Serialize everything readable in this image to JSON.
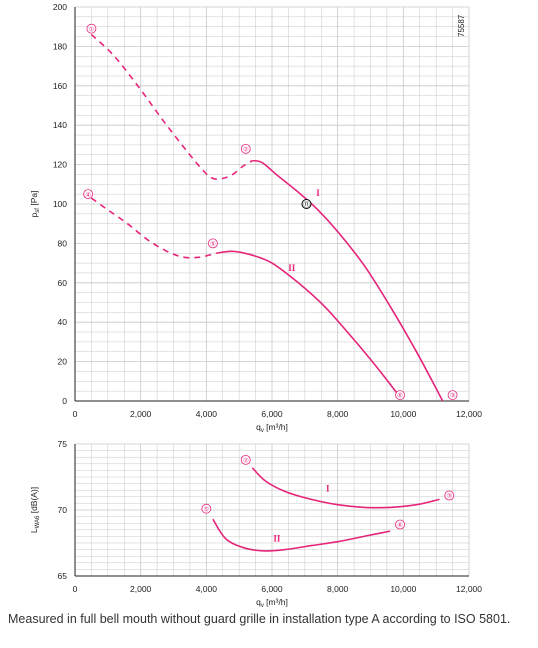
{
  "chart_data": [
    {
      "type": "line",
      "figure_id": "75587",
      "xlabel": "q_v [m³/h]",
      "ylabel": "p_sf [Pa]",
      "xlim": [
        0,
        12000
      ],
      "ylim": [
        0,
        200
      ],
      "x_ticks": [
        "0",
        "2,000",
        "4,000",
        "6,000",
        "8,000",
        "10,000",
        "12,000"
      ],
      "y_ticks": [
        "0",
        "20",
        "40",
        "60",
        "80",
        "100",
        "120",
        "140",
        "160",
        "180",
        "200"
      ],
      "grid": true,
      "series": [
        {
          "name": "I",
          "dashed": {
            "x": [
              500,
              1200,
              2000,
              2700,
              3400,
              3900,
              4200,
              4500,
              4800,
              5100,
              5400
            ],
            "y": [
              186,
              175,
              158,
              142,
              127,
              117,
              113,
              113,
              115,
              119,
              122
            ]
          },
          "solid": {
            "x": [
              5400,
              5700,
              6200,
              6800,
              7400,
              8000,
              8800,
              9600,
              10400,
              11200
            ],
            "y": [
              122,
              121,
              114,
              106,
              97,
              86,
              69,
              48,
              25,
              0
            ]
          }
        },
        {
          "name": "II",
          "dashed": {
            "x": [
              500,
              1000,
              1600,
              2200,
              2800,
              3300,
              3800,
              4300
            ],
            "y": [
              103,
              97,
              90,
              82,
              76,
              73,
              73,
              75
            ]
          },
          "solid": {
            "x": [
              4300,
              4800,
              5400,
              6000,
              6800,
              7600,
              8400,
              9200,
              9900
            ],
            "y": [
              75,
              76,
              74,
              70,
              60,
              48,
              33,
              17,
              2
            ]
          }
        }
      ],
      "markers": [
        {
          "label": "①",
          "x": 500,
          "y": 189
        },
        {
          "label": "②",
          "x": 5200,
          "y": 128
        },
        {
          "label": "③",
          "x": 11500,
          "y": 3
        },
        {
          "label": "④",
          "x": 400,
          "y": 105
        },
        {
          "label": "⑤",
          "x": 4200,
          "y": 80
        },
        {
          "label": "⑥",
          "x": 9900,
          "y": 3
        }
      ],
      "operating_point": {
        "label": "⑪",
        "x": 7050,
        "y": 100
      },
      "curve_labels": [
        {
          "text": "I",
          "x": 7400,
          "y": 104
        },
        {
          "text": "II",
          "x": 6600,
          "y": 66
        }
      ]
    },
    {
      "type": "line",
      "xlabel": "q_v [m³/h]",
      "ylabel": "L_WA6 [dB(A)]",
      "xlim": [
        0,
        12000
      ],
      "ylim": [
        65,
        75
      ],
      "x_ticks": [
        "0",
        "2,000",
        "4,000",
        "6,000",
        "8,000",
        "10,000",
        "12,000"
      ],
      "y_ticks": [
        "65",
        "70",
        "75"
      ],
      "grid": true,
      "series": [
        {
          "name": "I",
          "x": [
            5400,
            5800,
            6400,
            7200,
            8000,
            8800,
            9600,
            10400,
            11100
          ],
          "y": [
            73.2,
            72.2,
            71.4,
            70.8,
            70.4,
            70.2,
            70.2,
            70.4,
            70.8
          ]
        },
        {
          "name": "II",
          "x": [
            4200,
            4600,
            5200,
            5800,
            6400,
            7200,
            8000,
            8800,
            9600
          ],
          "y": [
            69.3,
            67.8,
            67.1,
            66.9,
            67.0,
            67.3,
            67.6,
            68.0,
            68.4
          ]
        }
      ],
      "markers": [
        {
          "label": "②",
          "x": 5200,
          "y": 73.8
        },
        {
          "label": "③",
          "x": 11400,
          "y": 71.1
        },
        {
          "label": "⑤",
          "x": 4000,
          "y": 70.1
        },
        {
          "label": "⑥",
          "x": 9900,
          "y": 68.9
        }
      ],
      "curve_labels": [
        {
          "text": "I",
          "x": 7700,
          "y": 71.4
        },
        {
          "text": "II",
          "x": 6150,
          "y": 67.6
        }
      ]
    }
  ],
  "caption": "Measured in full bell mouth without guard grille in installation type A according to ISO 5801.",
  "colors": {
    "curve": "#e5247a",
    "grid": "#c8c8c8",
    "axis": "#222222",
    "text": "#222222"
  }
}
